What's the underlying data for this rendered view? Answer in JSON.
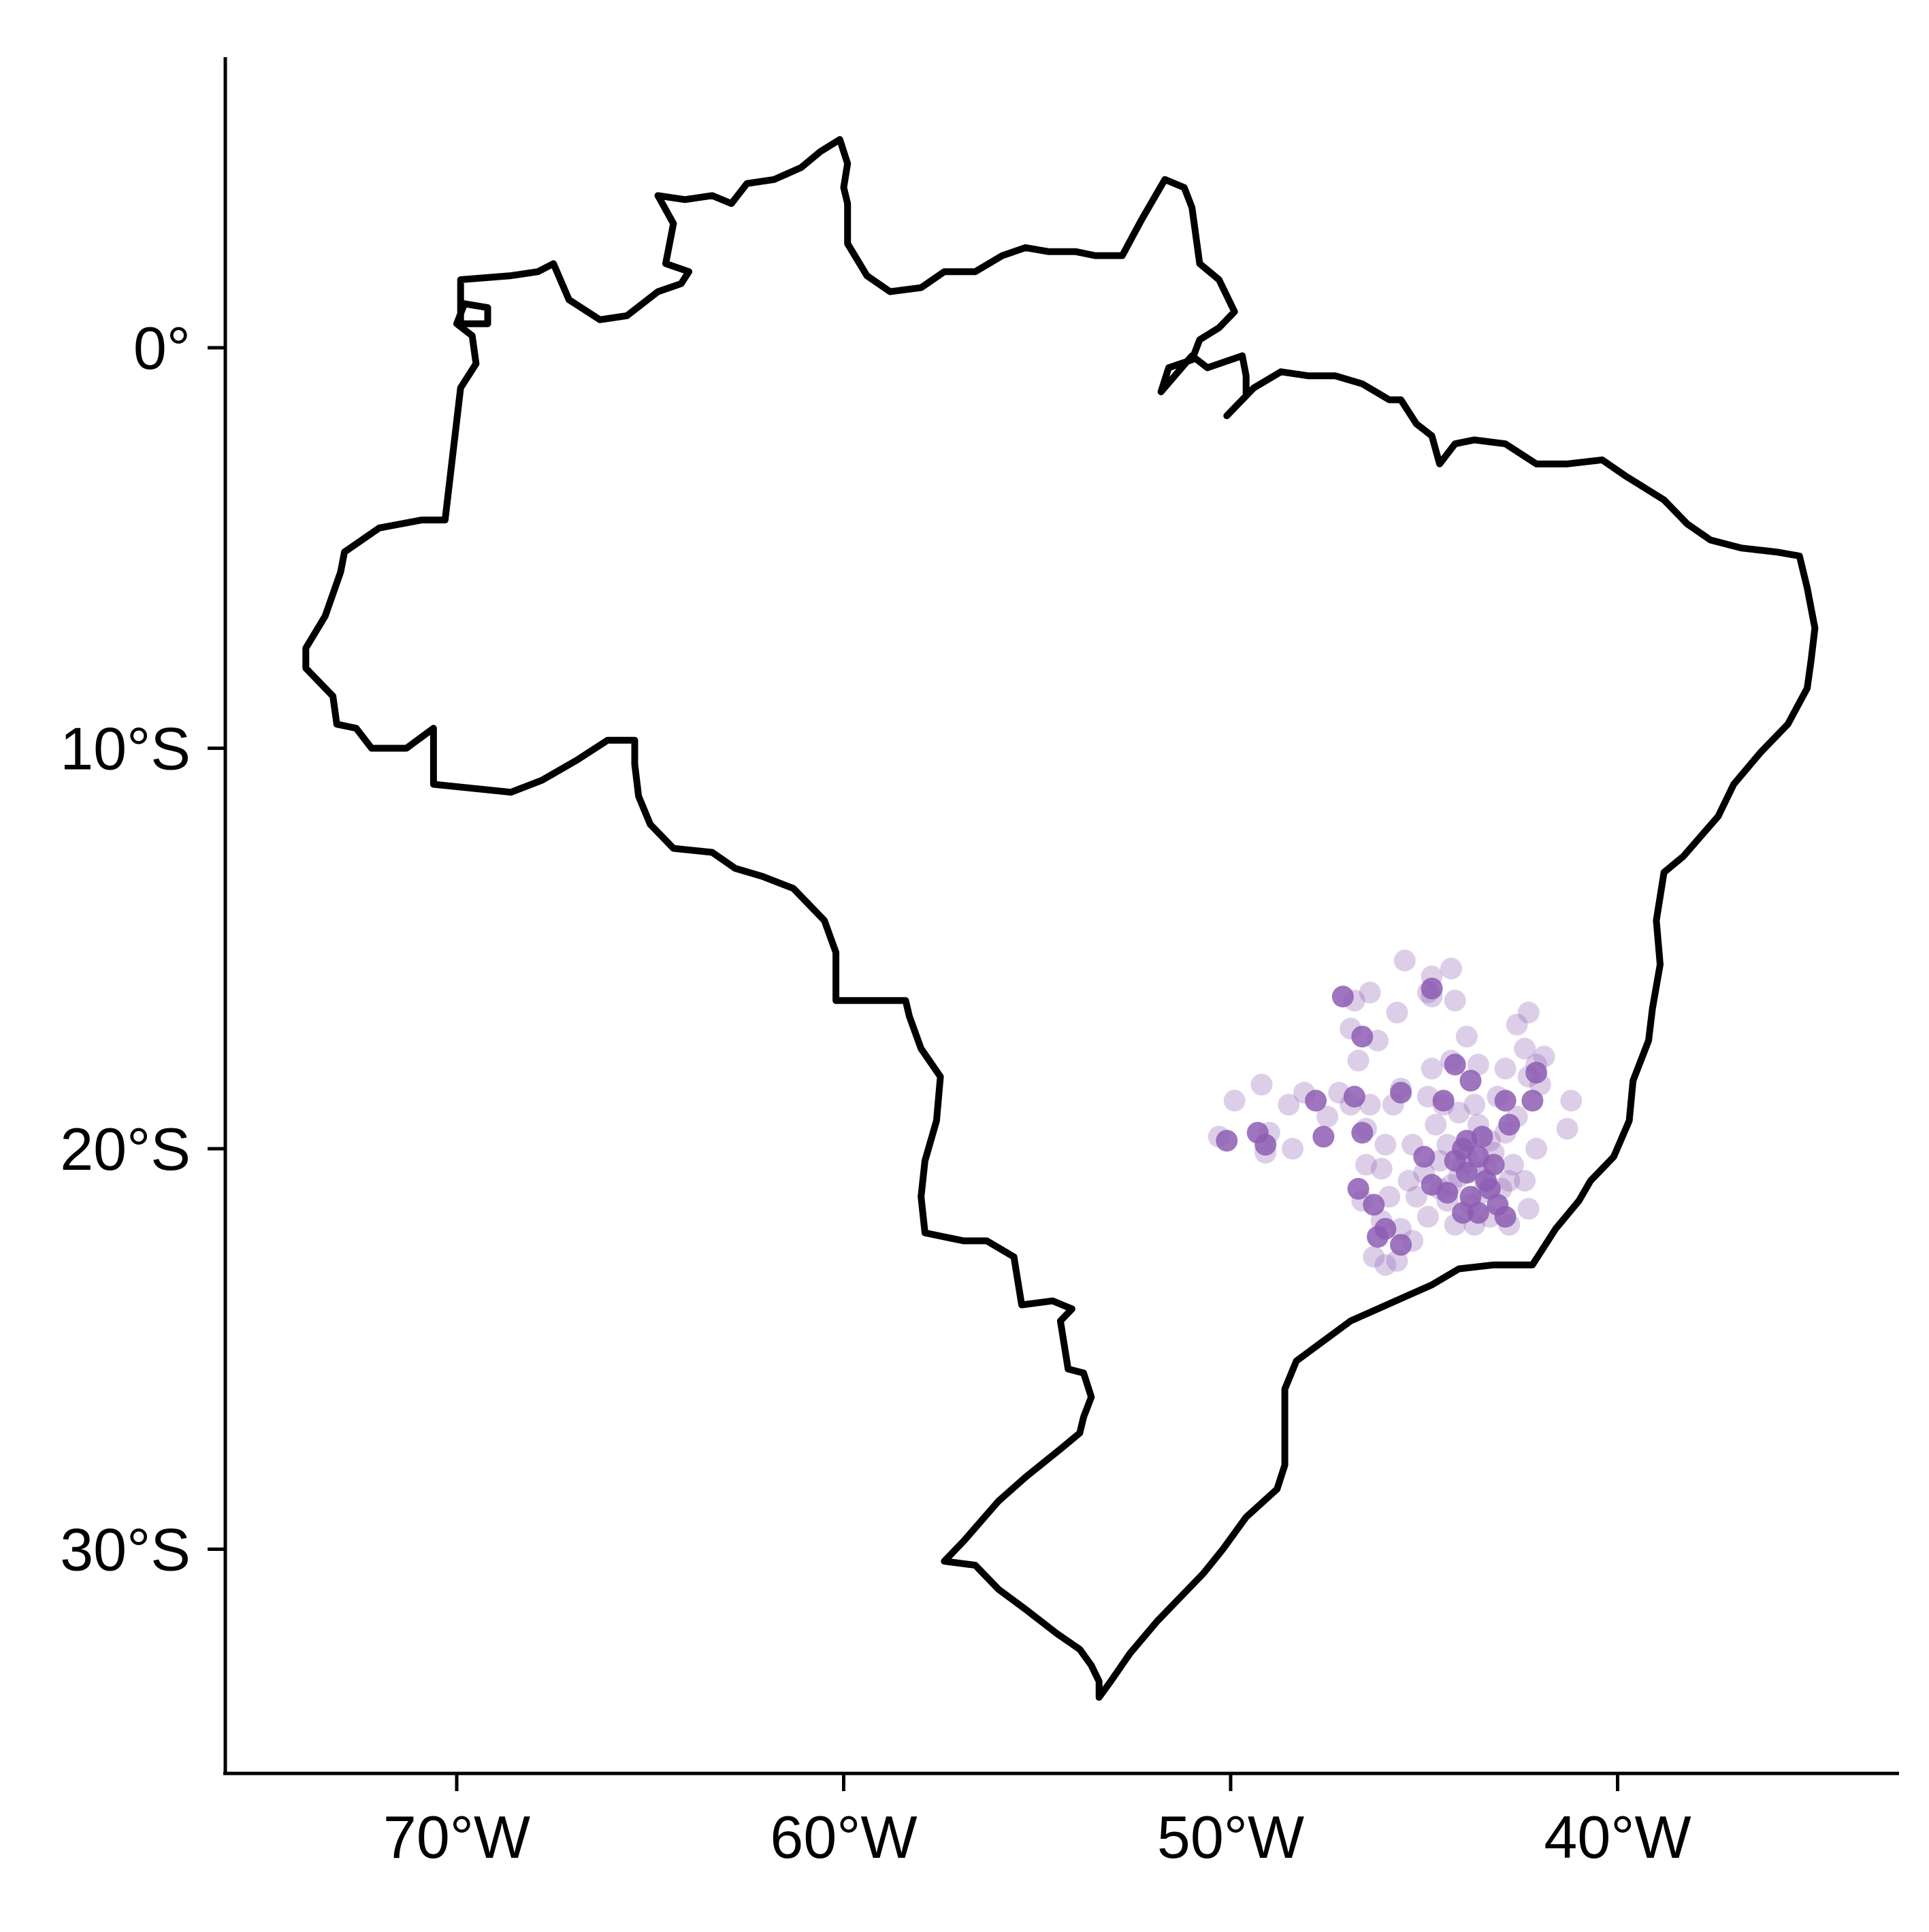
{
  "chart_data": {
    "type": "scatter",
    "title": "",
    "xlabel": "",
    "ylabel": "",
    "xlim": [
      -76,
      -33
    ],
    "ylim": [
      -35.5,
      7.3
    ],
    "x_ticks": [
      {
        "value": -70,
        "label": "70°W"
      },
      {
        "value": -60,
        "label": "60°W"
      },
      {
        "value": -50,
        "label": "50°W"
      },
      {
        "value": -40,
        "label": "40°W"
      }
    ],
    "y_ticks": [
      {
        "value": 0,
        "label": "0°"
      },
      {
        "value": -10,
        "label": "10°S"
      },
      {
        "value": -20,
        "label": "20°S"
      },
      {
        "value": -30,
        "label": "30°S"
      }
    ],
    "grid": false,
    "legend": "none",
    "outline": {
      "name": "Brazil",
      "color": "#000000",
      "lonlat": [
        [
          -73.9,
          -7.5
        ],
        [
          -73.4,
          -6.7
        ],
        [
          -73.0,
          -5.6
        ],
        [
          -72.9,
          -5.1
        ],
        [
          -72.0,
          -4.5
        ],
        [
          -70.9,
          -4.3
        ],
        [
          -70.3,
          -4.3
        ],
        [
          -69.9,
          -1.0
        ],
        [
          -69.5,
          -0.4
        ],
        [
          -69.6,
          0.3
        ],
        [
          -70.0,
          0.6
        ],
        [
          -69.8,
          1.1
        ],
        [
          -69.2,
          1.0
        ],
        [
          -69.2,
          0.6
        ],
        [
          -69.9,
          0.6
        ],
        [
          -69.9,
          1.7
        ],
        [
          -68.6,
          1.8
        ],
        [
          -67.9,
          1.9
        ],
        [
          -67.5,
          2.1
        ],
        [
          -67.1,
          1.2
        ],
        [
          -66.3,
          0.7
        ],
        [
          -65.6,
          0.8
        ],
        [
          -64.8,
          1.4
        ],
        [
          -64.2,
          1.6
        ],
        [
          -64.0,
          1.9
        ],
        [
          -64.6,
          2.1
        ],
        [
          -64.4,
          3.1
        ],
        [
          -64.8,
          3.8
        ],
        [
          -64.1,
          3.7
        ],
        [
          -63.4,
          3.8
        ],
        [
          -62.9,
          3.6
        ],
        [
          -62.5,
          4.1
        ],
        [
          -61.8,
          4.2
        ],
        [
          -61.1,
          4.5
        ],
        [
          -60.6,
          4.9
        ],
        [
          -60.1,
          5.2
        ],
        [
          -59.9,
          4.6
        ],
        [
          -60.0,
          4.0
        ],
        [
          -59.9,
          3.6
        ],
        [
          -59.9,
          2.6
        ],
        [
          -59.4,
          1.8
        ],
        [
          -58.8,
          1.4
        ],
        [
          -58.0,
          1.5
        ],
        [
          -57.4,
          1.9
        ],
        [
          -56.6,
          1.9
        ],
        [
          -55.9,
          2.3
        ],
        [
          -55.3,
          2.5
        ],
        [
          -54.7,
          2.4
        ],
        [
          -54.0,
          2.4
        ],
        [
          -53.5,
          2.3
        ],
        [
          -52.8,
          2.3
        ],
        [
          -52.3,
          3.2
        ],
        [
          -51.7,
          4.2
        ],
        [
          -51.2,
          4.0
        ],
        [
          -51.0,
          3.5
        ],
        [
          -50.8,
          2.1
        ],
        [
          -50.3,
          1.7
        ],
        [
          -49.9,
          0.9
        ],
        [
          -50.3,
          0.5
        ],
        [
          -50.8,
          0.2
        ],
        [
          -51.0,
          -0.3
        ],
        [
          -51.6,
          -0.5
        ],
        [
          -51.8,
          -1.1
        ],
        [
          -51.0,
          -0.2
        ],
        [
          -50.6,
          -0.5
        ],
        [
          -49.7,
          -0.2
        ],
        [
          -49.6,
          -0.7
        ],
        [
          -49.6,
          -1.2
        ],
        [
          -50.1,
          -1.7
        ],
        [
          -49.4,
          -1.0
        ],
        [
          -48.7,
          -0.6
        ],
        [
          -48.0,
          -0.7
        ],
        [
          -47.3,
          -0.7
        ],
        [
          -46.6,
          -0.9
        ],
        [
          -45.9,
          -1.3
        ],
        [
          -45.6,
          -1.3
        ],
        [
          -45.2,
          -1.9
        ],
        [
          -44.8,
          -2.2
        ],
        [
          -44.6,
          -2.9
        ],
        [
          -44.2,
          -2.4
        ],
        [
          -43.7,
          -2.3
        ],
        [
          -42.9,
          -2.4
        ],
        [
          -42.1,
          -2.9
        ],
        [
          -41.3,
          -2.9
        ],
        [
          -40.4,
          -2.8
        ],
        [
          -39.8,
          -3.2
        ],
        [
          -38.8,
          -3.8
        ],
        [
          -38.2,
          -4.4
        ],
        [
          -37.6,
          -4.8
        ],
        [
          -36.8,
          -5.0
        ],
        [
          -35.9,
          -5.1
        ],
        [
          -35.3,
          -5.2
        ],
        [
          -35.1,
          -6.0
        ],
        [
          -34.9,
          -7.0
        ],
        [
          -35.0,
          -7.8
        ],
        [
          -35.1,
          -8.5
        ],
        [
          -35.6,
          -9.4
        ],
        [
          -36.3,
          -10.1
        ],
        [
          -37.0,
          -10.9
        ],
        [
          -37.4,
          -11.7
        ],
        [
          -38.3,
          -12.7
        ],
        [
          -38.8,
          -13.1
        ],
        [
          -39.0,
          -14.3
        ],
        [
          -38.9,
          -15.4
        ],
        [
          -39.1,
          -16.5
        ],
        [
          -39.2,
          -17.3
        ],
        [
          -39.6,
          -18.3
        ],
        [
          -39.7,
          -19.3
        ],
        [
          -40.1,
          -20.2
        ],
        [
          -40.7,
          -20.8
        ],
        [
          -41.0,
          -21.3
        ],
        [
          -41.6,
          -22.0
        ],
        [
          -42.2,
          -22.9
        ],
        [
          -43.2,
          -22.9
        ],
        [
          -44.1,
          -23.0
        ],
        [
          -44.8,
          -23.4
        ],
        [
          -45.5,
          -23.7
        ],
        [
          -46.2,
          -24.0
        ],
        [
          -46.9,
          -24.3
        ],
        [
          -47.6,
          -24.8
        ],
        [
          -48.3,
          -25.3
        ],
        [
          -48.6,
          -26.0
        ],
        [
          -48.6,
          -26.9
        ],
        [
          -48.6,
          -27.9
        ],
        [
          -48.8,
          -28.5
        ],
        [
          -49.6,
          -29.2
        ],
        [
          -50.2,
          -30.0
        ],
        [
          -50.7,
          -30.6
        ],
        [
          -51.2,
          -31.1
        ],
        [
          -51.9,
          -31.8
        ],
        [
          -52.6,
          -32.6
        ],
        [
          -53.1,
          -33.3
        ],
        [
          -53.4,
          -33.7
        ],
        [
          -53.4,
          -33.3
        ],
        [
          -53.6,
          -32.9
        ],
        [
          -53.9,
          -32.5
        ],
        [
          -54.5,
          -32.1
        ],
        [
          -55.3,
          -31.5
        ],
        [
          -56.0,
          -31.0
        ],
        [
          -56.6,
          -30.4
        ],
        [
          -57.4,
          -30.3
        ],
        [
          -56.9,
          -29.8
        ],
        [
          -56.0,
          -28.8
        ],
        [
          -55.3,
          -28.2
        ],
        [
          -54.4,
          -27.5
        ],
        [
          -53.9,
          -27.1
        ],
        [
          -53.8,
          -26.7
        ],
        [
          -53.6,
          -26.2
        ],
        [
          -53.8,
          -25.6
        ],
        [
          -54.2,
          -25.5
        ],
        [
          -54.4,
          -24.3
        ],
        [
          -54.1,
          -24.0
        ],
        [
          -54.6,
          -23.8
        ],
        [
          -55.4,
          -23.9
        ],
        [
          -55.6,
          -22.7
        ],
        [
          -56.3,
          -22.3
        ],
        [
          -56.9,
          -22.3
        ],
        [
          -57.9,
          -22.1
        ],
        [
          -58.0,
          -21.2
        ],
        [
          -57.9,
          -20.3
        ],
        [
          -57.6,
          -19.3
        ],
        [
          -57.5,
          -18.2
        ],
        [
          -58.0,
          -17.5
        ],
        [
          -58.3,
          -16.7
        ],
        [
          -58.4,
          -16.3
        ],
        [
          -60.2,
          -16.3
        ],
        [
          -60.2,
          -15.1
        ],
        [
          -60.5,
          -14.3
        ],
        [
          -61.3,
          -13.5
        ],
        [
          -62.1,
          -13.2
        ],
        [
          -62.8,
          -13.0
        ],
        [
          -63.4,
          -12.6
        ],
        [
          -64.4,
          -12.5
        ],
        [
          -65.0,
          -11.9
        ],
        [
          -65.3,
          -11.2
        ],
        [
          -65.4,
          -10.4
        ],
        [
          -65.4,
          -9.8
        ],
        [
          -66.1,
          -9.8
        ],
        [
          -66.9,
          -10.3
        ],
        [
          -67.8,
          -10.8
        ],
        [
          -68.6,
          -11.1
        ],
        [
          -69.6,
          -11.0
        ],
        [
          -70.6,
          -10.9
        ],
        [
          -70.6,
          -9.5
        ],
        [
          -71.3,
          -10.0
        ],
        [
          -72.2,
          -10.0
        ],
        [
          -72.6,
          -9.5
        ],
        [
          -73.1,
          -9.4
        ],
        [
          -73.2,
          -8.7
        ],
        [
          -73.9,
          -8.0
        ],
        [
          -73.9,
          -7.5
        ]
      ]
    },
    "points": {
      "color": "#8d5db3",
      "opacity": 0.3,
      "lonlat": [
        [
          -45.5,
          -15.3
        ],
        [
          -44.8,
          -15.7
        ],
        [
          -44.3,
          -15.5
        ],
        [
          -44.9,
          -16.1
        ],
        [
          -44.2,
          -16.3
        ],
        [
          -46.8,
          -16.3
        ],
        [
          -46.4,
          -16.1
        ],
        [
          -44.8,
          -16.2
        ],
        [
          -45.7,
          -16.6
        ],
        [
          -43.9,
          -17.2
        ],
        [
          -42.3,
          -16.6
        ],
        [
          -42.6,
          -16.9
        ],
        [
          -46.9,
          -17.0
        ],
        [
          -46.7,
          -17.8
        ],
        [
          -46.2,
          -17.3
        ],
        [
          -44.3,
          -17.8
        ],
        [
          -44.8,
          -18.0
        ],
        [
          -43.6,
          -17.9
        ],
        [
          -42.4,
          -17.5
        ],
        [
          -41.9,
          -17.7
        ],
        [
          -42.0,
          -18.4
        ],
        [
          -41.2,
          -18.8
        ],
        [
          -41.3,
          -19.5
        ],
        [
          -42.3,
          -18.2
        ],
        [
          -42.9,
          -18.0
        ],
        [
          -42.1,
          -17.9
        ],
        [
          -49.2,
          -18.4
        ],
        [
          -48.1,
          -18.6
        ],
        [
          -48.5,
          -18.9
        ],
        [
          -49.9,
          -18.8
        ],
        [
          -50.3,
          -19.7
        ],
        [
          -49.0,
          -19.6
        ],
        [
          -48.4,
          -20.0
        ],
        [
          -49.1,
          -20.1
        ],
        [
          -47.2,
          -18.6
        ],
        [
          -46.9,
          -18.9
        ],
        [
          -47.5,
          -19.2
        ],
        [
          -46.4,
          -18.9
        ],
        [
          -46.5,
          -19.5
        ],
        [
          -45.8,
          -18.9
        ],
        [
          -45.6,
          -18.5
        ],
        [
          -44.9,
          -18.7
        ],
        [
          -44.5,
          -18.9
        ],
        [
          -44.7,
          -19.4
        ],
        [
          -45.3,
          -19.9
        ],
        [
          -46.1,
          -20.5
        ],
        [
          -45.9,
          -21.2
        ],
        [
          -46.6,
          -21.3
        ],
        [
          -46.1,
          -21.8
        ],
        [
          -45.6,
          -22.0
        ],
        [
          -45.3,
          -22.3
        ],
        [
          -46.3,
          -22.7
        ],
        [
          -46.0,
          -22.9
        ],
        [
          -45.7,
          -22.8
        ],
        [
          -44.9,
          -21.7
        ],
        [
          -44.4,
          -21.3
        ],
        [
          -43.8,
          -21.4
        ],
        [
          -43.3,
          -21.7
        ],
        [
          -42.8,
          -21.9
        ],
        [
          -43.4,
          -20.5
        ],
        [
          -43.9,
          -20.2
        ],
        [
          -44.1,
          -20.7
        ],
        [
          -44.4,
          -19.9
        ],
        [
          -43.6,
          -19.4
        ],
        [
          -42.9,
          -19.6
        ],
        [
          -43.2,
          -20.1
        ],
        [
          -42.7,
          -20.4
        ],
        [
          -42.4,
          -20.8
        ],
        [
          -42.3,
          -21.5
        ],
        [
          -42.1,
          -20.0
        ],
        [
          -42.6,
          -19.2
        ],
        [
          -43.1,
          -18.7
        ],
        [
          -43.7,
          -18.9
        ],
        [
          -44.1,
          -19.1
        ],
        [
          -44.6,
          -20.3
        ],
        [
          -45.0,
          -20.6
        ],
        [
          -44.6,
          -21.0
        ],
        [
          -45.2,
          -21.2
        ],
        [
          -45.4,
          -20.8
        ],
        [
          -46.5,
          -20.4
        ],
        [
          -46.0,
          -19.9
        ],
        [
          -43.5,
          -21.1
        ],
        [
          -43.0,
          -21.0
        ],
        [
          -44.2,
          -21.9
        ],
        [
          -43.7,
          -21.9
        ],
        [
          -42.8,
          -20.8
        ],
        [
          -43.3,
          -19.8
        ],
        [
          -44.0,
          -20.4
        ],
        [
          -43.6,
          -20.6
        ],
        [
          -44.3,
          -20.9
        ]
      ]
    },
    "points_strong": {
      "color": "#8d5db3",
      "opacity": 0.85,
      "lonlat": [
        [
          -44.8,
          -16.0
        ],
        [
          -47.1,
          -16.2
        ],
        [
          -46.6,
          -17.2
        ],
        [
          -44.2,
          -17.9
        ],
        [
          -43.8,
          -18.3
        ],
        [
          -42.1,
          -18.1
        ],
        [
          -42.9,
          -18.8
        ],
        [
          -47.8,
          -18.8
        ],
        [
          -46.8,
          -18.7
        ],
        [
          -46.6,
          -19.6
        ],
        [
          -47.6,
          -19.7
        ],
        [
          -49.3,
          -19.6
        ],
        [
          -50.1,
          -19.8
        ],
        [
          -49.1,
          -19.9
        ],
        [
          -45.6,
          -18.6
        ],
        [
          -44.5,
          -18.8
        ],
        [
          -44.0,
          -20.0
        ],
        [
          -43.6,
          -20.2
        ],
        [
          -43.2,
          -20.4
        ],
        [
          -44.2,
          -20.3
        ],
        [
          -43.9,
          -20.6
        ],
        [
          -43.4,
          -20.8
        ],
        [
          -44.4,
          -21.1
        ],
        [
          -43.8,
          -21.2
        ],
        [
          -43.1,
          -21.4
        ],
        [
          -42.9,
          -21.7
        ],
        [
          -46.7,
          -21.0
        ],
        [
          -46.3,
          -21.4
        ],
        [
          -46.0,
          -22.0
        ],
        [
          -45.6,
          -22.4
        ],
        [
          -46.2,
          -22.2
        ],
        [
          -45.0,
          -20.2
        ],
        [
          -44.8,
          -20.9
        ],
        [
          -42.8,
          -19.4
        ],
        [
          -43.5,
          -19.7
        ],
        [
          -43.9,
          -19.8
        ],
        [
          -42.2,
          -18.8
        ],
        [
          -43.3,
          -21.0
        ],
        [
          -44.0,
          -21.6
        ],
        [
          -43.6,
          -21.6
        ]
      ]
    }
  }
}
